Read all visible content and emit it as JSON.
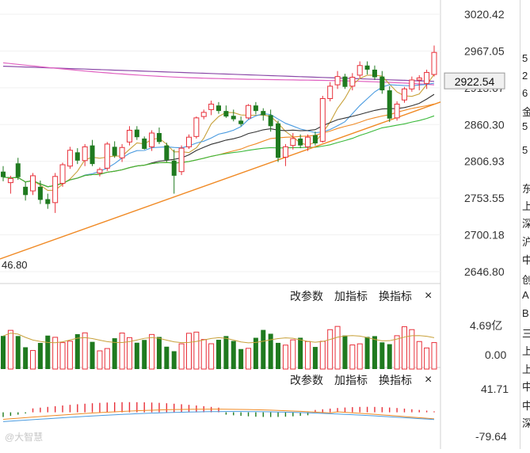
{
  "price_panel": {
    "y_ticks": [
      "3020.42",
      "2967.05",
      "2913.67",
      "2860.30",
      "2806.93",
      "2753.55",
      "2700.18",
      "2646.80"
    ],
    "y_values": [
      3020.42,
      2967.05,
      2913.67,
      2860.3,
      2806.93,
      2753.55,
      2700.18,
      2646.8
    ],
    "current_price_label": "2922.54",
    "low_marker": "46.80",
    "colors": {
      "up": "#e8303a",
      "down": "#1f7a1f",
      "ma5": "#c8a13a",
      "ma10": "#4a9be0",
      "ma20": "#333333",
      "ma30": "#f08a25",
      "ma60": "#3ab93a",
      "ma120": "#e060c0",
      "ma250": "#8b4aa8",
      "trendline": "#f08a25"
    }
  },
  "volume_panel": {
    "toolbar": {
      "change_params": "改参数",
      "add_indicator": "加指标",
      "swap_indicator": "换指标",
      "close": "×"
    },
    "y_ticks": [
      "4.69亿",
      "0.00"
    ]
  },
  "macd_panel": {
    "toolbar": {
      "change_params": "改参数",
      "add_indicator": "加指标",
      "swap_indicator": "换指标",
      "close": "×"
    },
    "y_ticks": [
      "41.71",
      "-79.64"
    ]
  },
  "right_strip_chars": [
    "5",
    "2",
    "6",
    "金",
    "5",
    "5",
    "东",
    "上",
    "深",
    "沪",
    "中",
    "创",
    "A",
    "B",
    "三",
    "上",
    "上",
    "中",
    "中",
    "深"
  ],
  "watermark": "@大智慧",
  "chart_data": {
    "type": "candlestick",
    "ylim": [
      2646.8,
      3020.42
    ],
    "candles": [
      {
        "o": 2792,
        "h": 2800,
        "l": 2778,
        "c": 2784
      },
      {
        "o": 2776,
        "h": 2786,
        "l": 2760,
        "c": 2782
      },
      {
        "o": 2804,
        "h": 2812,
        "l": 2780,
        "c": 2784
      },
      {
        "o": 2770,
        "h": 2777,
        "l": 2750,
        "c": 2758
      },
      {
        "o": 2764,
        "h": 2790,
        "l": 2758,
        "c": 2786
      },
      {
        "o": 2770,
        "h": 2779,
        "l": 2745,
        "c": 2751
      },
      {
        "o": 2752,
        "h": 2760,
        "l": 2738,
        "c": 2745
      },
      {
        "o": 2747,
        "h": 2790,
        "l": 2732,
        "c": 2785
      },
      {
        "o": 2775,
        "h": 2805,
        "l": 2770,
        "c": 2802
      },
      {
        "o": 2800,
        "h": 2828,
        "l": 2796,
        "c": 2823
      },
      {
        "o": 2820,
        "h": 2826,
        "l": 2803,
        "c": 2808
      },
      {
        "o": 2808,
        "h": 2832,
        "l": 2800,
        "c": 2828
      },
      {
        "o": 2830,
        "h": 2838,
        "l": 2800,
        "c": 2803
      },
      {
        "o": 2790,
        "h": 2798,
        "l": 2785,
        "c": 2795
      },
      {
        "o": 2797,
        "h": 2835,
        "l": 2793,
        "c": 2832
      },
      {
        "o": 2828,
        "h": 2836,
        "l": 2812,
        "c": 2815
      },
      {
        "o": 2812,
        "h": 2832,
        "l": 2806,
        "c": 2827
      },
      {
        "o": 2835,
        "h": 2858,
        "l": 2830,
        "c": 2852
      },
      {
        "o": 2853,
        "h": 2858,
        "l": 2838,
        "c": 2842
      },
      {
        "o": 2840,
        "h": 2843,
        "l": 2824,
        "c": 2825
      },
      {
        "o": 2828,
        "h": 2852,
        "l": 2822,
        "c": 2848
      },
      {
        "o": 2848,
        "h": 2856,
        "l": 2832,
        "c": 2835
      },
      {
        "o": 2830,
        "h": 2834,
        "l": 2806,
        "c": 2809
      },
      {
        "o": 2808,
        "h": 2824,
        "l": 2760,
        "c": 2786
      },
      {
        "o": 2792,
        "h": 2830,
        "l": 2787,
        "c": 2826
      },
      {
        "o": 2828,
        "h": 2846,
        "l": 2825,
        "c": 2842
      },
      {
        "o": 2843,
        "h": 2872,
        "l": 2840,
        "c": 2870
      },
      {
        "o": 2872,
        "h": 2882,
        "l": 2868,
        "c": 2878
      },
      {
        "o": 2882,
        "h": 2895,
        "l": 2874,
        "c": 2890
      },
      {
        "o": 2888,
        "h": 2893,
        "l": 2876,
        "c": 2880
      },
      {
        "o": 2880,
        "h": 2888,
        "l": 2870,
        "c": 2872
      },
      {
        "o": 2873,
        "h": 2882,
        "l": 2865,
        "c": 2868
      },
      {
        "o": 2866,
        "h": 2872,
        "l": 2858,
        "c": 2861
      },
      {
        "o": 2870,
        "h": 2890,
        "l": 2868,
        "c": 2888
      },
      {
        "o": 2888,
        "h": 2893,
        "l": 2875,
        "c": 2880
      },
      {
        "o": 2880,
        "h": 2884,
        "l": 2866,
        "c": 2874
      },
      {
        "o": 2874,
        "h": 2882,
        "l": 2850,
        "c": 2858
      },
      {
        "o": 2862,
        "h": 2866,
        "l": 2806,
        "c": 2812
      },
      {
        "o": 2813,
        "h": 2832,
        "l": 2800,
        "c": 2828
      },
      {
        "o": 2830,
        "h": 2848,
        "l": 2824,
        "c": 2840
      },
      {
        "o": 2840,
        "h": 2846,
        "l": 2826,
        "c": 2830
      },
      {
        "o": 2828,
        "h": 2846,
        "l": 2822,
        "c": 2842
      },
      {
        "o": 2845,
        "h": 2850,
        "l": 2830,
        "c": 2833
      },
      {
        "o": 2836,
        "h": 2902,
        "l": 2834,
        "c": 2898
      },
      {
        "o": 2898,
        "h": 2922,
        "l": 2894,
        "c": 2916
      },
      {
        "o": 2918,
        "h": 2938,
        "l": 2912,
        "c": 2930
      },
      {
        "o": 2930,
        "h": 2934,
        "l": 2912,
        "c": 2915
      },
      {
        "o": 2916,
        "h": 2935,
        "l": 2910,
        "c": 2929
      },
      {
        "o": 2932,
        "h": 2952,
        "l": 2928,
        "c": 2946
      },
      {
        "o": 2946,
        "h": 2952,
        "l": 2933,
        "c": 2940
      },
      {
        "o": 2940,
        "h": 2946,
        "l": 2925,
        "c": 2929
      },
      {
        "o": 2930,
        "h": 2938,
        "l": 2905,
        "c": 2910
      },
      {
        "o": 2910,
        "h": 2916,
        "l": 2864,
        "c": 2869
      },
      {
        "o": 2870,
        "h": 2894,
        "l": 2866,
        "c": 2890
      },
      {
        "o": 2896,
        "h": 2915,
        "l": 2892,
        "c": 2912
      },
      {
        "o": 2912,
        "h": 2930,
        "l": 2908,
        "c": 2925
      },
      {
        "o": 2925,
        "h": 2932,
        "l": 2910,
        "c": 2928
      },
      {
        "o": 2920,
        "h": 2940,
        "l": 2912,
        "c": 2936
      },
      {
        "o": 2933,
        "h": 2975,
        "l": 2930,
        "c": 2965
      }
    ],
    "trendline": {
      "from_low": 2646.8,
      "to": 2893
    },
    "volume": {
      "ylim": [
        0,
        4.69
      ],
      "unit": "亿"
    },
    "macd": {
      "ylim": [
        -79.64,
        41.71
      ]
    }
  }
}
